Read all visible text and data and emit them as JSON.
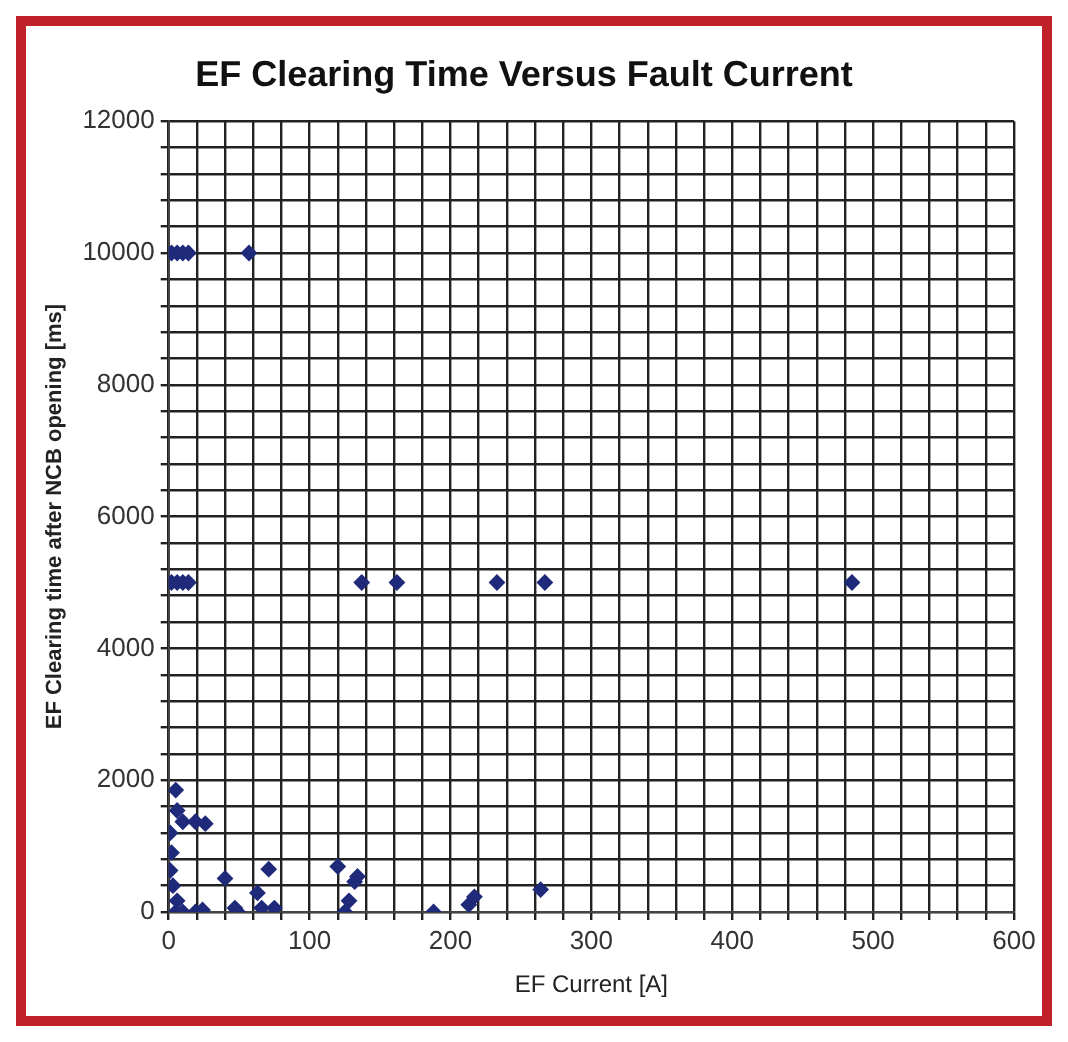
{
  "chart_data": {
    "type": "scatter",
    "title": "EF Clearing Time Versus Fault Current",
    "xlabel": "EF Current [A]",
    "ylabel": "EF Clearing time after NCB opening [ms]",
    "xlim": [
      0,
      600
    ],
    "ylim": [
      0,
      12000
    ],
    "xticks": [
      0,
      {
        "value": 20,
        "label": null
      },
      {
        "value": 40,
        "label": null
      },
      {
        "value": 60,
        "label": null
      },
      {
        "value": 80,
        "label": null
      },
      100,
      {
        "value": 120,
        "label": null
      },
      {
        "value": 140,
        "label": null
      },
      {
        "value": 160,
        "label": null
      },
      {
        "value": 180,
        "label": null
      },
      200,
      {
        "value": 220,
        "label": null
      },
      {
        "value": 240,
        "label": null
      },
      {
        "value": 260,
        "label": null
      },
      {
        "value": 280,
        "label": null
      },
      300,
      {
        "value": 320,
        "label": null
      },
      {
        "value": 340,
        "label": null
      },
      {
        "value": 360,
        "label": null
      },
      {
        "value": 380,
        "label": null
      },
      400,
      {
        "value": 420,
        "label": null
      },
      {
        "value": 440,
        "label": null
      },
      {
        "value": 460,
        "label": null
      },
      {
        "value": 480,
        "label": null
      },
      500,
      {
        "value": 520,
        "label": null
      },
      {
        "value": 540,
        "label": null
      },
      {
        "value": 560,
        "label": null
      },
      {
        "value": 580,
        "label": null
      },
      600
    ],
    "yticks": [
      0,
      {
        "value": 400,
        "label": null
      },
      {
        "value": 800,
        "label": null
      },
      {
        "value": 1200,
        "label": null
      },
      {
        "value": 1600,
        "label": null
      },
      2000,
      {
        "value": 2400,
        "label": null
      },
      {
        "value": 2800,
        "label": null
      },
      {
        "value": 3200,
        "label": null
      },
      {
        "value": 3600,
        "label": null
      },
      4000,
      {
        "value": 4400,
        "label": null
      },
      {
        "value": 4800,
        "label": null
      },
      {
        "value": 5200,
        "label": null
      },
      {
        "value": 5600,
        "label": null
      },
      6000,
      {
        "value": 6400,
        "label": null
      },
      {
        "value": 6800,
        "label": null
      },
      {
        "value": 7200,
        "label": null
      },
      {
        "value": 7600,
        "label": null
      },
      8000,
      {
        "value": 8400,
        "label": null
      },
      {
        "value": 8800,
        "label": null
      },
      {
        "value": 9200,
        "label": null
      },
      {
        "value": 9600,
        "label": null
      },
      10000,
      {
        "value": 10400,
        "label": null
      },
      {
        "value": 10800,
        "label": null
      },
      {
        "value": 11200,
        "label": null
      },
      {
        "value": 11600,
        "label": null
      },
      12000
    ],
    "grid": true,
    "marker": "diamond",
    "series": [
      {
        "color": "#1f2a7a",
        "x": [
          2,
          6,
          10,
          14,
          57,
          2,
          6,
          10,
          14,
          137,
          162,
          233,
          267,
          485,
          5,
          6,
          10,
          19,
          26,
          1,
          2,
          1,
          3,
          6,
          5,
          10,
          19,
          24,
          40,
          47,
          49,
          63,
          66,
          71,
          75,
          120,
          128,
          132,
          134,
          125,
          188,
          213,
          217,
          264
        ],
        "values": [
          10000,
          10000,
          10000,
          10000,
          10000,
          5000,
          5000,
          5000,
          5000,
          5000,
          5000,
          5000,
          5000,
          5000,
          1850,
          1540,
          1370,
          1370,
          1340,
          1200,
          900,
          630,
          400,
          170,
          0,
          0,
          0,
          30,
          510,
          60,
          0,
          290,
          60,
          650,
          60,
          690,
          170,
          460,
          540,
          0,
          0,
          110,
          230,
          340
        ]
      }
    ]
  }
}
